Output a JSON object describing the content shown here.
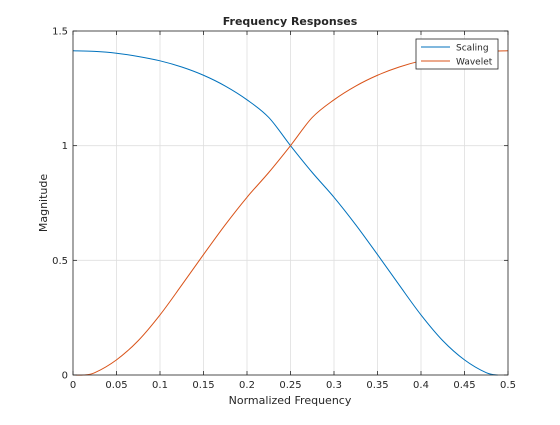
{
  "chart_data": {
    "type": "line",
    "title": "Frequency Responses",
    "xlabel": "Normalized Frequency",
    "ylabel": "Magnitude",
    "xlim": [
      0,
      0.5
    ],
    "ylim": [
      0,
      1.5
    ],
    "xticks": [
      0,
      0.05,
      0.1,
      0.15,
      0.2,
      0.25,
      0.3,
      0.35,
      0.4,
      0.45,
      0.5
    ],
    "xtick_labels": [
      "0",
      "0.05",
      "0.1",
      "0.15",
      "0.2",
      "0.25",
      "0.3",
      "0.35",
      "0.4",
      "0.45",
      "0.5"
    ],
    "yticks": [
      0,
      0.5,
      1,
      1.5
    ],
    "ytick_labels": [
      "0",
      "0.5",
      "1",
      "1.5"
    ],
    "grid": true,
    "legend_position": "top-right",
    "series": [
      {
        "name": "Scaling",
        "color": "#0072bd",
        "x": [
          0,
          0.025,
          0.05,
          0.075,
          0.1,
          0.125,
          0.15,
          0.175,
          0.2,
          0.225,
          0.25,
          0.275,
          0.3,
          0.325,
          0.35,
          0.375,
          0.4,
          0.425,
          0.45,
          0.475,
          0.4883
        ],
        "y": [
          1.414,
          1.411,
          1.403,
          1.389,
          1.37,
          1.343,
          1.307,
          1.26,
          1.2,
          1.123,
          1.0,
          0.883,
          0.775,
          0.655,
          0.525,
          0.392,
          0.262,
          0.15,
          0.066,
          0.01,
          0.0
        ]
      },
      {
        "name": "Wavelet",
        "color": "#d95319",
        "x": [
          0,
          0.0117,
          0.025,
          0.05,
          0.075,
          0.1,
          0.125,
          0.15,
          0.175,
          0.2,
          0.225,
          0.25,
          0.275,
          0.3,
          0.325,
          0.35,
          0.375,
          0.4,
          0.425,
          0.45,
          0.475,
          0.5
        ],
        "y": [
          0.0,
          0.0,
          0.01,
          0.066,
          0.15,
          0.262,
          0.392,
          0.525,
          0.655,
          0.775,
          0.883,
          1.0,
          1.123,
          1.2,
          1.26,
          1.307,
          1.343,
          1.37,
          1.389,
          1.403,
          1.411,
          1.414
        ]
      }
    ]
  }
}
